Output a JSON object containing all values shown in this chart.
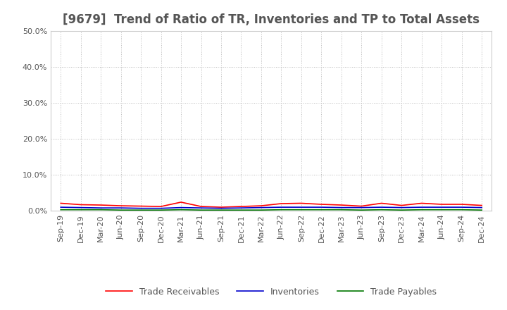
{
  "title": "[9679]  Trend of Ratio of TR, Inventories and TP to Total Assets",
  "x_labels": [
    "Sep-19",
    "Dec-19",
    "Mar-20",
    "Jun-20",
    "Sep-20",
    "Dec-20",
    "Mar-21",
    "Jun-21",
    "Sep-21",
    "Dec-21",
    "Mar-22",
    "Jun-22",
    "Sep-22",
    "Dec-22",
    "Mar-23",
    "Jun-23",
    "Sep-23",
    "Dec-23",
    "Mar-24",
    "Jun-24",
    "Sep-24",
    "Dec-24"
  ],
  "trade_receivables": [
    0.021,
    0.017,
    0.016,
    0.014,
    0.013,
    0.012,
    0.024,
    0.012,
    0.01,
    0.012,
    0.014,
    0.02,
    0.021,
    0.018,
    0.016,
    0.013,
    0.021,
    0.015,
    0.021,
    0.018,
    0.018,
    0.015
  ],
  "inventories": [
    0.01,
    0.009,
    0.008,
    0.008,
    0.007,
    0.007,
    0.009,
    0.008,
    0.007,
    0.008,
    0.009,
    0.01,
    0.01,
    0.01,
    0.009,
    0.009,
    0.01,
    0.009,
    0.01,
    0.01,
    0.01,
    0.009
  ],
  "trade_payables": [
    0.003,
    0.003,
    0.003,
    0.002,
    0.002,
    0.002,
    0.003,
    0.002,
    0.002,
    0.002,
    0.002,
    0.003,
    0.003,
    0.003,
    0.003,
    0.002,
    0.003,
    0.002,
    0.003,
    0.003,
    0.003,
    0.002
  ],
  "tr_color": "#ff0000",
  "inv_color": "#0000cc",
  "tp_color": "#007700",
  "ylim": [
    0.0,
    0.5
  ],
  "yticks": [
    0.0,
    0.1,
    0.2,
    0.3,
    0.4,
    0.5
  ],
  "background_color": "#ffffff",
  "grid_color": "#bbbbbb",
  "text_color": "#555555",
  "title_fontsize": 12,
  "tick_fontsize": 8,
  "legend_labels": [
    "Trade Receivables",
    "Inventories",
    "Trade Payables"
  ]
}
